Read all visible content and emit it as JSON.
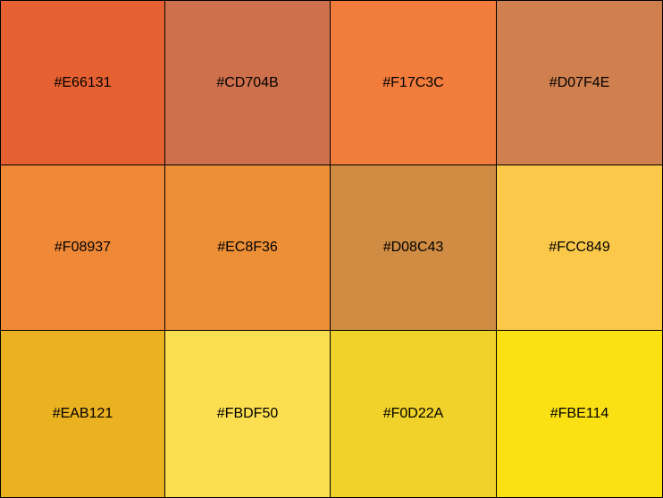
{
  "swatches": [
    {
      "hex": "#E66131",
      "label": "#E66131"
    },
    {
      "hex": "#CD704B",
      "label": "#CD704B"
    },
    {
      "hex": "#F17C3C",
      "label": "#F17C3C"
    },
    {
      "hex": "#D07F4E",
      "label": "#D07F4E"
    },
    {
      "hex": "#F08937",
      "label": "#F08937"
    },
    {
      "hex": "#EC8F36",
      "label": "#EC8F36"
    },
    {
      "hex": "#D08C43",
      "label": "#D08C43"
    },
    {
      "hex": "#FCC849",
      "label": "#FCC849"
    },
    {
      "hex": "#EAB121",
      "label": "#EAB121"
    },
    {
      "hex": "#FBDF50",
      "label": "#FBDF50"
    },
    {
      "hex": "#F0D22A",
      "label": "#F0D22A"
    },
    {
      "hex": "#FBE114",
      "label": "#FBE114"
    }
  ]
}
